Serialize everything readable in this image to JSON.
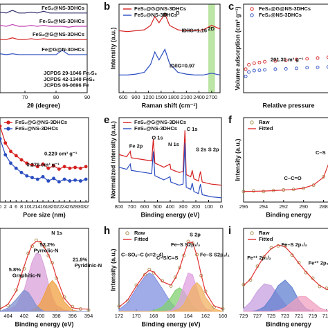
{
  "chart_data": [
    {
      "type": "line",
      "xlabel": "2θ (degree)",
      "xlim": [
        62,
        90
      ],
      "xticks": [
        70,
        80,
        90
      ],
      "ylim": [
        0,
        10
      ],
      "legend": "inline",
      "x": [
        62,
        64,
        66,
        68,
        70,
        72,
        74,
        76,
        78,
        80,
        82,
        84,
        86,
        88,
        90
      ],
      "series": [
        {
          "name": "FeS₂@NS-3DHCs",
          "color": "#2c2c6a",
          "values": [
            9.1,
            9.0,
            9.3,
            9.0,
            9.0,
            9.1,
            9.0,
            9.2,
            9.0,
            9.0,
            9.0,
            9.0,
            9.0,
            9.0,
            9.0
          ]
        },
        {
          "name": "Fe₇S₈@NS-3DHCs",
          "color": "#c040b0",
          "values": [
            7.6,
            7.5,
            7.7,
            7.5,
            7.5,
            7.6,
            7.5,
            7.6,
            7.5,
            7.5,
            7.5,
            7.4,
            7.5,
            7.5,
            7.5
          ]
        },
        {
          "name": "FeS₂@G@NS-3DHCs",
          "color": "#d62020",
          "values": [
            6.0,
            6.0,
            6.2,
            6.0,
            6.0,
            6.1,
            6.0,
            6.1,
            6.0,
            6.0,
            6.0,
            6.0,
            6.0,
            6.0,
            6.0
          ]
        },
        {
          "name": "Fe@G@N-3DHCs",
          "color": "#2a4cc0",
          "values": [
            4.4,
            4.3,
            4.4,
            4.3,
            4.3,
            4.3,
            4.3,
            4.3,
            4.3,
            4.3,
            4.8,
            4.3,
            4.3,
            4.3,
            4.3
          ]
        }
      ],
      "annotations": [
        {
          "text": "JCPDS 29-1046 Fe₇S₈",
          "color": "#555555"
        },
        {
          "text": "JCPDS 42-1340 FeS₂",
          "color": "#555555"
        },
        {
          "text": "JCPDS 06-0696 Fe",
          "color": "#555555"
        }
      ]
    },
    {
      "type": "line",
      "label": "b",
      "xlabel": "Raman shift (cm⁻¹)",
      "ylabel": "Intensity (a.u.)",
      "xlim": [
        500,
        2900
      ],
      "xticks": [
        600,
        900,
        1200,
        1500,
        1800,
        2100,
        2400,
        2700
      ],
      "ylim": [
        0,
        10
      ],
      "highlight": [
        2620,
        2780
      ],
      "highlight_color": "#8fd36a",
      "legend": "top",
      "x": [
        500,
        700,
        900,
        1100,
        1250,
        1350,
        1450,
        1590,
        1700,
        1900,
        2100,
        2300,
        2500,
        2700,
        2900
      ],
      "series": [
        {
          "name": "FeS₂@G@NS-3DHCs",
          "color": "#d62020",
          "values": [
            7.0,
            6.9,
            7.0,
            7.1,
            7.6,
            8.6,
            7.9,
            8.9,
            7.6,
            7.1,
            7.0,
            7.0,
            7.1,
            7.6,
            7.2
          ]
        },
        {
          "name": "FeS₂@NS-3DHCs",
          "color": "#2a4cc0",
          "values": [
            2.0,
            2.0,
            2.1,
            2.3,
            3.2,
            4.6,
            3.7,
            4.9,
            3.3,
            2.3,
            2.1,
            2.0,
            2.0,
            2.2,
            2.0
          ]
        }
      ],
      "annotations": [
        {
          "text": "D",
          "color": "#111111"
        },
        {
          "text": "G",
          "color": "#111111"
        },
        {
          "text": "2D",
          "color": "#111111"
        },
        {
          "text": "ID/IG=1.16",
          "color": "#d62020"
        },
        {
          "text": "ID/IG=0.97",
          "color": "#2a4cc0"
        }
      ]
    },
    {
      "type": "line",
      "label": "c",
      "xlabel": "Relative pressure",
      "ylabel": "Volume adsorption (cm³ g⁻¹)",
      "xlim": [
        0,
        0.85
      ],
      "ylim": [
        0,
        6
      ],
      "legend": "top",
      "x": [
        0.02,
        0.05,
        0.1,
        0.15,
        0.2,
        0.3,
        0.4,
        0.5,
        0.6,
        0.7,
        0.8
      ],
      "series": [
        {
          "name": "FeS₂@G@NS-3DHCs",
          "color": "#d62020",
          "marker": "circle",
          "line": false,
          "values": [
            1.6,
            1.9,
            2.0,
            2.05,
            2.1,
            2.15,
            2.2,
            2.25,
            2.3,
            2.35,
            2.4
          ]
        },
        {
          "name": "FeS₂@NS-3DHCs",
          "color": "#2a4cc0",
          "marker": "circle",
          "line": false,
          "values": [
            1.1,
            1.4,
            1.5,
            1.52,
            1.55,
            1.6,
            1.62,
            1.65,
            1.7,
            1.72,
            1.75
          ]
        }
      ],
      "annotations": [
        {
          "text": "201.31 m² g⁻¹",
          "color": "#2a4cc0"
        }
      ]
    },
    {
      "type": "line",
      "xlabel": "Pore size (nm)",
      "xlim": [
        0,
        33
      ],
      "xticks": [
        0,
        2,
        4,
        6,
        8,
        10,
        12,
        14,
        16,
        18,
        20,
        22,
        24,
        26,
        28,
        30,
        32
      ],
      "ylim": [
        0,
        10
      ],
      "legend": "top",
      "x": [
        0,
        2,
        4,
        6,
        8,
        10,
        12,
        14,
        16,
        18,
        20,
        22,
        24,
        26,
        28,
        30,
        32
      ],
      "series": [
        {
          "name": "FeS₂@G@NS-3DHCs",
          "color": "#d62020",
          "marker": "circle",
          "values": [
            9.0,
            7.0,
            6.0,
            5.5,
            5.0,
            4.6,
            4.4,
            4.2,
            4.5,
            4.0,
            4.3,
            3.9,
            4.2,
            4.0,
            4.1,
            4.0,
            4.2
          ]
        },
        {
          "name": "FeS₂@NS-3DHCs",
          "color": "#2a4cc0",
          "marker": "circle",
          "values": [
            7.5,
            5.6,
            4.6,
            4.0,
            3.5,
            3.1,
            2.9,
            2.7,
            3.0,
            2.5,
            2.8,
            2.4,
            2.7,
            2.5,
            2.6,
            2.5,
            2.7
          ]
        }
      ],
      "annotations": [
        {
          "text": "0.229 cm³ g⁻¹",
          "color": "#d62020"
        },
        {
          "text": "0.276 cm³ g⁻¹",
          "color": "#2a4cc0"
        }
      ]
    },
    {
      "type": "line",
      "label": "e",
      "xlabel": "Binding energy (eV)",
      "ylabel": "Normalized intensity (a.u.)",
      "xlim": [
        800,
        0
      ],
      "xticks": [
        800,
        700,
        600,
        500,
        400,
        300,
        200,
        100,
        0
      ],
      "ylim": [
        2,
        10
      ],
      "legend": "top",
      "x": [
        800,
        740,
        712,
        705,
        600,
        545,
        532,
        520,
        450,
        402,
        395,
        330,
        300,
        285,
        275,
        240,
        228,
        215,
        180,
        164,
        150,
        80,
        0
      ],
      "series": [
        {
          "name": "FeS₂@G@NS-3DHCs",
          "color": "#d62020",
          "values": [
            6.5,
            6.3,
            6.8,
            6.2,
            6.0,
            5.9,
            8.0,
            5.7,
            5.3,
            5.6,
            5.1,
            4.8,
            4.9,
            8.8,
            4.6,
            4.4,
            5.0,
            4.2,
            4.0,
            4.9,
            3.9,
            3.7,
            3.6
          ]
        },
        {
          "name": "FeS₂@NS-3DHCs",
          "color": "#2a4cc0",
          "values": [
            5.3,
            5.1,
            5.6,
            5.0,
            4.8,
            4.7,
            6.8,
            4.5,
            4.1,
            4.4,
            3.9,
            3.6,
            3.7,
            7.6,
            3.4,
            3.2,
            3.8,
            3.0,
            2.8,
            3.7,
            2.7,
            2.5,
            2.4
          ]
        }
      ],
      "annotations": [
        {
          "text": "Fe 2p",
          "color": "#111111"
        },
        {
          "text": "O 1s",
          "color": "#111111"
        },
        {
          "text": "N 1s",
          "color": "#111111"
        },
        {
          "text": "C 1s",
          "color": "#111111"
        },
        {
          "text": "S 2s",
          "color": "#111111"
        },
        {
          "text": "S 2p",
          "color": "#111111"
        }
      ]
    },
    {
      "type": "line",
      "label": "f",
      "xlabel": "Binding energy",
      "ylabel": "Intensity (a.u.)",
      "xlim": [
        296,
        287
      ],
      "xticks": [
        296,
        294,
        292,
        290,
        288
      ],
      "ylim": [
        0,
        8
      ],
      "legend": "top",
      "x": [
        296,
        295,
        294,
        293,
        292,
        291,
        290,
        289,
        288,
        287
      ],
      "series": [
        {
          "name": "Raw",
          "color": "#a89050",
          "marker": "circle",
          "line": false,
          "values": [
            1.0,
            1.05,
            1.0,
            1.1,
            1.15,
            1.2,
            1.3,
            1.6,
            2.4,
            5.0
          ]
        },
        {
          "name": "Fitted",
          "color": "#e03030",
          "values": [
            1.0,
            1.02,
            1.04,
            1.08,
            1.14,
            1.2,
            1.32,
            1.62,
            2.35,
            4.9
          ]
        }
      ],
      "annotations": [
        {
          "text": "C–C=O",
          "color": "#111111"
        },
        {
          "text": "C–S",
          "color": "#c040b0"
        }
      ]
    },
    {
      "type": "line",
      "xlabel": "Binding energy (eV)",
      "xlim": [
        405,
        394
      ],
      "xticks": [
        404,
        402,
        400,
        398,
        396,
        394
      ],
      "ylim": [
        0,
        7
      ],
      "legend": "top",
      "x": [
        405,
        404,
        403,
        402,
        401.5,
        401,
        400.5,
        400,
        399.5,
        399,
        398.5,
        398,
        397,
        396,
        395,
        394
      ],
      "series": [
        {
          "color": "#d9a0d9",
          "fill": true,
          "values": [
            0,
            0.1,
            0.5,
            1.8,
            3.0,
            4.2,
            4.9,
            4.8,
            3.8,
            2.4,
            1.2,
            0.5,
            0.1,
            0,
            0,
            0
          ]
        },
        {
          "color": "#f0a040",
          "fill": true,
          "values": [
            0,
            0,
            0,
            0,
            0,
            0.1,
            0.3,
            0.7,
            1.4,
            2.2,
            2.6,
            2.2,
            0.8,
            0.1,
            0,
            0
          ]
        },
        {
          "color": "#8090d0",
          "fill": true,
          "values": [
            0,
            0.3,
            1.0,
            1.8,
            1.6,
            1.1,
            0.5,
            0.2,
            0,
            0,
            0,
            0,
            0,
            0,
            0,
            0
          ]
        },
        {
          "color": "#a89050",
          "marker": "circle",
          "line": false,
          "values": [
            0.3,
            0.5,
            1.8,
            3.6,
            4.9,
            5.5,
            6.0,
            5.8,
            5.5,
            4.7,
            4.1,
            2.8,
            1.2,
            0.4,
            0.2,
            0.1
          ]
        },
        {
          "color": "#e03030",
          "values": [
            0.2,
            0.6,
            1.7,
            3.8,
            4.8,
            5.6,
            5.9,
            5.9,
            5.4,
            4.8,
            4.0,
            2.9,
            1.1,
            0.3,
            0.2,
            0.2
          ]
        }
      ],
      "annotations": [
        {
          "text": "N 1s",
          "color": "#111111"
        },
        {
          "text": "52.2%",
          "color": "#b040b0"
        },
        {
          "text": "Pyrrolic-N",
          "color": "#b040b0"
        },
        {
          "text": "21.9%",
          "color": "#d08020"
        },
        {
          "text": "Pyridinic-N",
          "color": "#d08020"
        },
        {
          "text": "5.8%",
          "color": "#4050b0"
        },
        {
          "text": "Graphitic-N",
          "color": "#4050b0"
        }
      ]
    },
    {
      "type": "line",
      "label": "h",
      "xlabel": "Binding energy (eV)",
      "ylabel": "Intensity (a.u.)",
      "xlim": [
        172,
        160
      ],
      "xticks": [
        172,
        170,
        168,
        166,
        164,
        162,
        160
      ],
      "ylim": [
        0,
        9.5
      ],
      "legend": "top",
      "x": [
        172,
        171,
        170,
        169,
        168.5,
        168,
        167,
        166,
        165.5,
        165,
        164.5,
        164,
        163.5,
        163,
        162.5,
        162,
        161,
        160
      ],
      "series": [
        {
          "color": "#8090e0",
          "fill": true,
          "values": [
            0.2,
            1.0,
            2.6,
            4.0,
            4.4,
            4.1,
            2.6,
            1.0,
            0.5,
            0.2,
            0.1,
            0,
            0,
            0,
            0,
            0,
            0,
            0
          ]
        },
        {
          "color": "#80d070",
          "fill": true,
          "values": [
            0,
            0,
            0,
            0,
            0,
            0.1,
            0.5,
            1.6,
            2.4,
            2.7,
            2.3,
            1.4,
            0.6,
            0.2,
            0,
            0,
            0,
            0
          ]
        },
        {
          "color": "#e0a0e0",
          "fill": true,
          "values": [
            0,
            0,
            0,
            0,
            0,
            0,
            0,
            0.1,
            0.5,
            1.4,
            3.0,
            4.4,
            4.2,
            2.6,
            1.1,
            0.3,
            0,
            0
          ]
        },
        {
          "color": "#f0b060",
          "fill": true,
          "values": [
            0,
            0,
            0,
            0,
            0,
            0,
            0,
            0,
            0.1,
            0.3,
            0.8,
            1.8,
            2.8,
            3.3,
            2.8,
            1.6,
            0.3,
            0
          ]
        },
        {
          "name": "Raw",
          "color": "#a89050",
          "marker": "circle",
          "line": false,
          "values": [
            0.6,
            1.2,
            3.0,
            4.2,
            4.8,
            4.4,
            3.5,
            2.9,
            3.9,
            5.0,
            6.4,
            8.0,
            7.8,
            6.5,
            4.1,
            2.3,
            0.5,
            0.3
          ]
        },
        {
          "name": "Fitted",
          "color": "#e03030",
          "values": [
            0.5,
            1.3,
            2.9,
            4.3,
            4.7,
            4.5,
            3.4,
            3.0,
            3.8,
            4.9,
            6.5,
            7.9,
            7.9,
            6.4,
            4.2,
            2.2,
            0.6,
            0.3
          ]
        }
      ],
      "annotations": [
        {
          "text": "S 2p",
          "color": "#111111"
        },
        {
          "text": "C–SOₓ–C (x=2–4)",
          "color": "#111111"
        },
        {
          "text": "C–S/C=S",
          "color": "#111111"
        },
        {
          "text": "Fe–S S2p₁/₂",
          "color": "#111111"
        },
        {
          "text": "Fe–S S2p₃/₂",
          "color": "#111111"
        }
      ]
    },
    {
      "type": "line",
      "label": "i",
      "xlabel": "Binding energy",
      "xlim": [
        729,
        716
      ],
      "xticks": [
        729,
        727,
        725,
        723,
        721,
        719,
        717
      ],
      "ylim": [
        0,
        9
      ],
      "legend": "top",
      "x": [
        729,
        728,
        727,
        726,
        725,
        724,
        723,
        722,
        721,
        720,
        719,
        718,
        717,
        716
      ],
      "series": [
        {
          "color": "#c8a0e0",
          "fill": true,
          "values": [
            0.3,
            1.0,
            2.2,
            3.0,
            2.8,
            1.8,
            0.8,
            0.2,
            0,
            0,
            0,
            0,
            0,
            0
          ]
        },
        {
          "color": "#6080d0",
          "fill": true,
          "values": [
            0,
            0,
            0.1,
            0.5,
            1.5,
            2.8,
            3.4,
            2.6,
            1.2,
            0.3,
            0,
            0,
            0,
            0
          ]
        },
        {
          "color": "#f0a0c0",
          "fill": true,
          "values": [
            0,
            0,
            0,
            0,
            0,
            0.1,
            0.4,
            1.0,
            1.6,
            1.6,
            1.0,
            0.4,
            0.1,
            0
          ]
        },
        {
          "name": "Raw",
          "color": "#a89050",
          "marker": "circle",
          "line": false,
          "values": [
            2.9,
            3.4,
            4.9,
            5.9,
            6.9,
            7.1,
            7.1,
            6.1,
            5.3,
            4.2,
            3.6,
            2.7,
            2.5,
            2.1
          ]
        },
        {
          "name": "Fitted",
          "color": "#e03030",
          "values": [
            2.8,
            3.5,
            4.8,
            6.0,
            6.8,
            7.2,
            7.0,
            6.2,
            5.2,
            4.3,
            3.5,
            2.8,
            2.4,
            2.2
          ]
        }
      ],
      "annotations": [
        {
          "text": "Fe³⁺ 2p₁/₂",
          "color": "#111111"
        },
        {
          "text": "Fe–S 2p₁/₂",
          "color": "#111111"
        },
        {
          "text": "Fe²⁺ 2p₁/₂",
          "color": "#111111"
        }
      ]
    }
  ]
}
